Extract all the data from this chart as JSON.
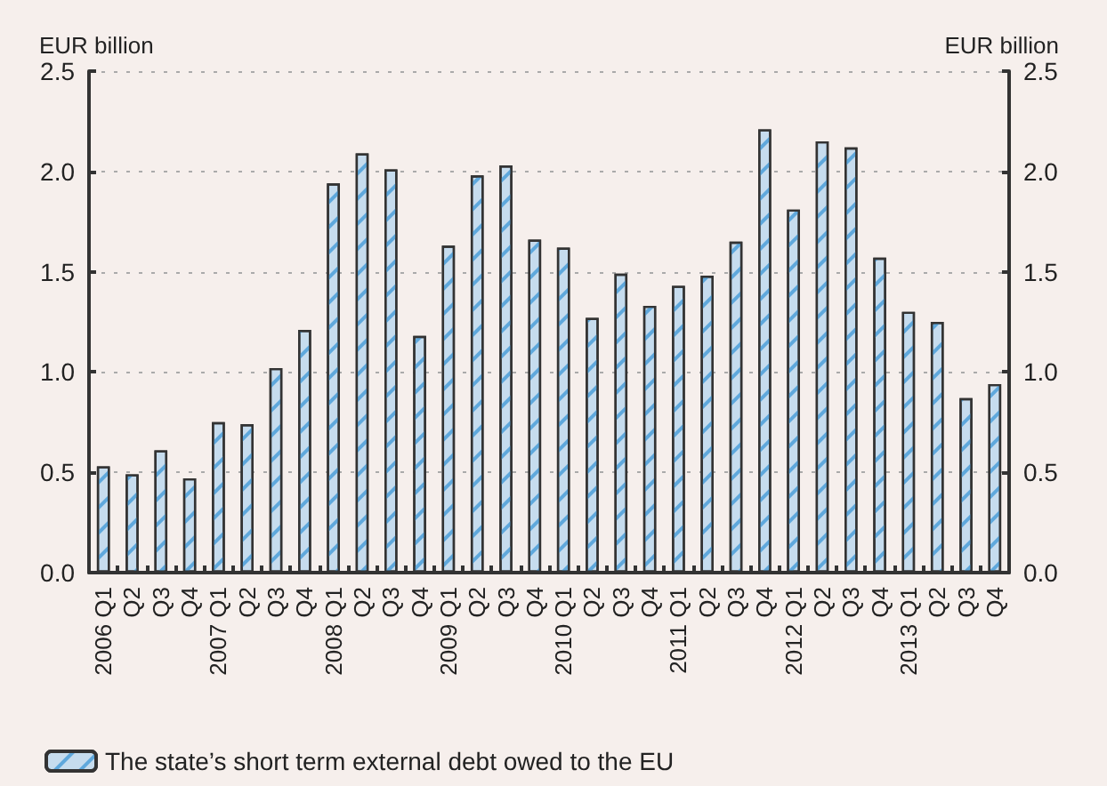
{
  "chart_data": {
    "type": "bar",
    "ylabel": "EUR billion",
    "y2label": "EUR billion",
    "categories": [
      "2006 Q1",
      "Q2",
      "Q3",
      "Q4",
      "2007 Q1",
      "Q2",
      "Q3",
      "Q4",
      "2008 Q1",
      "Q2",
      "Q3",
      "Q4",
      "2009 Q1",
      "Q2",
      "Q3",
      "Q4",
      "2010 Q1",
      "Q2",
      "Q3",
      "Q4",
      "2011 Q1",
      "Q2",
      "Q3",
      "Q4",
      "2012 Q1",
      "Q2",
      "Q3",
      "Q4",
      "2013 Q1",
      "Q2",
      "Q3",
      "Q4"
    ],
    "series": [
      {
        "name": "The state’s short term external debt owed to the EU",
        "color": "#c6dcee",
        "values": [
          0.53,
          0.49,
          0.61,
          0.47,
          0.75,
          0.74,
          1.02,
          1.21,
          1.94,
          2.09,
          2.01,
          1.18,
          1.63,
          1.98,
          2.03,
          1.66,
          1.62,
          1.27,
          1.49,
          1.33,
          1.43,
          1.48,
          1.65,
          2.21,
          1.81,
          2.15,
          2.12,
          1.57,
          1.3,
          1.25,
          0.87,
          0.94
        ]
      }
    ],
    "ylim": [
      0,
      2.5
    ],
    "yticks": [
      {
        "value": 0,
        "label": "0.0"
      },
      {
        "value": 0.5,
        "label": "0.5"
      },
      {
        "value": 1,
        "label": "1.0"
      },
      {
        "value": 1.5,
        "label": "1.5"
      },
      {
        "value": 2,
        "label": "2.0"
      },
      {
        "value": 2.5,
        "label": "2.5"
      }
    ],
    "y2lim": [
      0,
      2.5
    ],
    "y2ticks": [
      {
        "value": 0,
        "label": "0.0"
      },
      {
        "value": 0.5,
        "label": "0.5"
      },
      {
        "value": 1,
        "label": "1.0"
      },
      {
        "value": 1.5,
        "label": "1.5"
      },
      {
        "value": 2,
        "label": "2.0"
      },
      {
        "value": 2.5,
        "label": "2.5"
      }
    ],
    "grid": "y",
    "legend": "bottom"
  }
}
